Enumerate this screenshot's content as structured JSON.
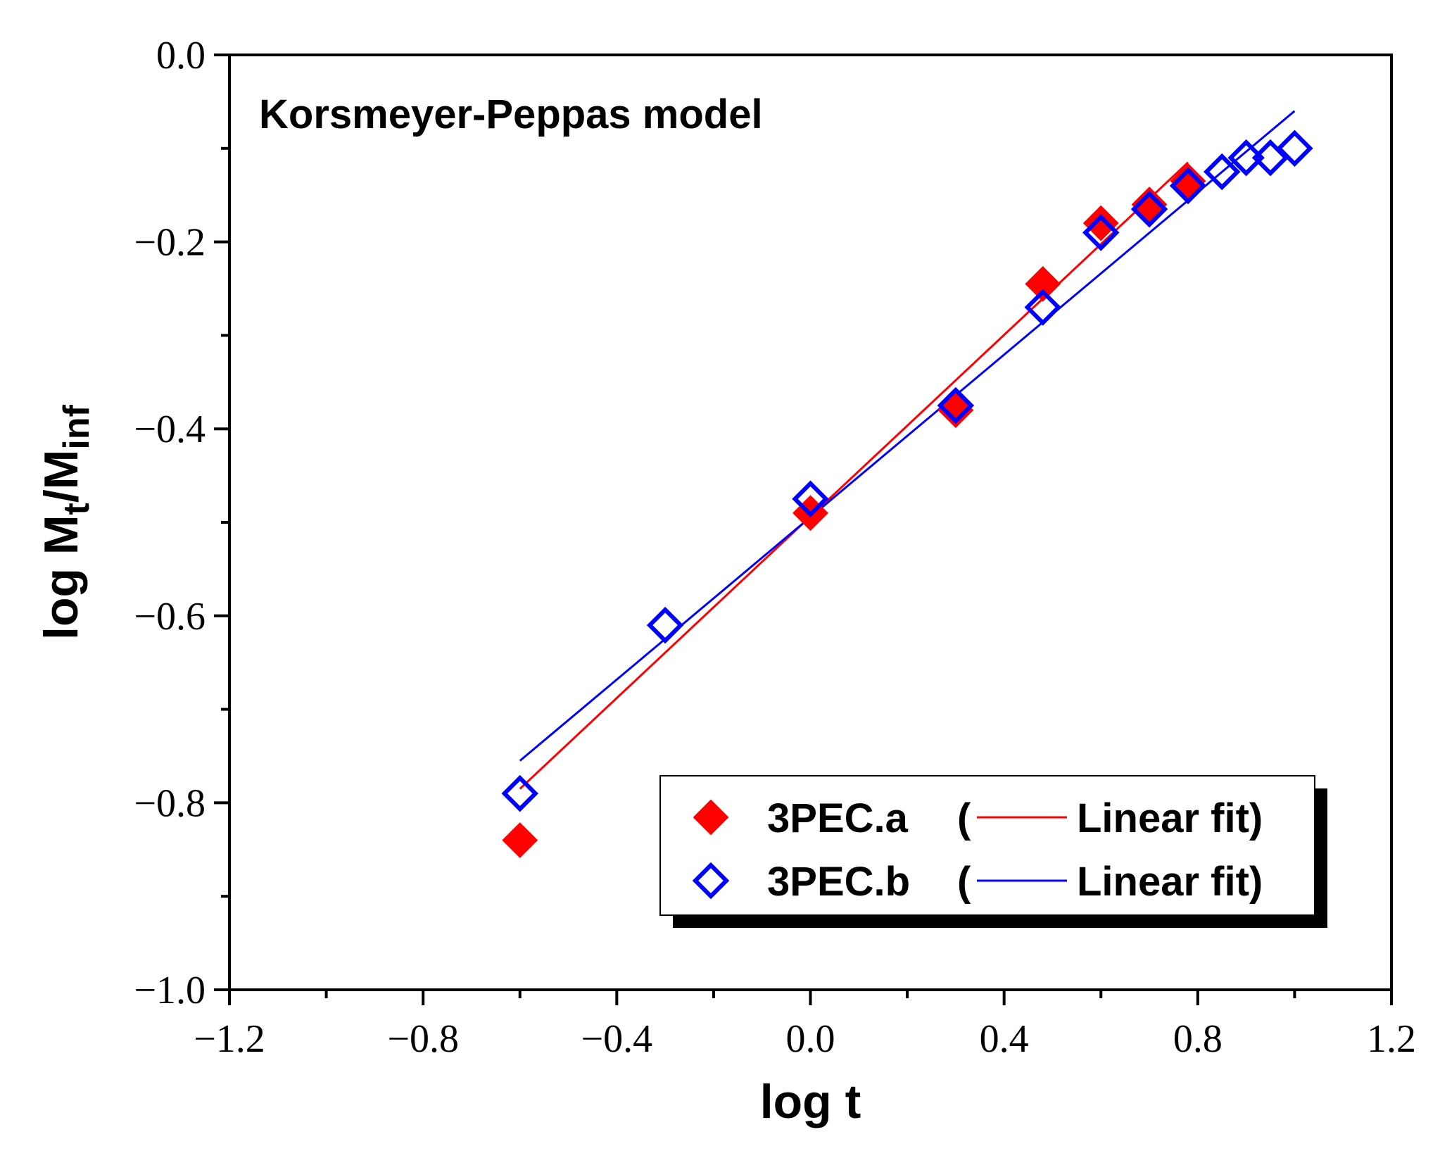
{
  "chart_data": {
    "type": "scatter",
    "title": "",
    "annotation": "Korsmeyer-Peppas model",
    "xlabel": "log t",
    "ylabel": {
      "prefix": "log M",
      "sub1": "t",
      "mid": "/M",
      "sub2": "inf"
    },
    "xlim": [
      -1.2,
      1.2
    ],
    "ylim": [
      -1.0,
      0.0
    ],
    "x_ticks": [
      -1.2,
      -0.8,
      -0.4,
      0.0,
      0.4,
      0.8,
      1.2
    ],
    "x_tick_labels": [
      "−1.2",
      "−0.8",
      "−0.4",
      "0.0",
      "0.4",
      "0.8",
      "1.2"
    ],
    "x_minor_ticks": [
      -1.0,
      -0.6,
      -0.2,
      0.2,
      0.6,
      1.0
    ],
    "y_ticks": [
      0.0,
      -0.2,
      -0.4,
      -0.6,
      -0.8,
      -1.0
    ],
    "y_tick_labels": [
      "0.0",
      "−0.2",
      "−0.4",
      "−0.6",
      "−0.8",
      "−1.0"
    ],
    "y_minor_ticks": [
      -0.1,
      -0.3,
      -0.5,
      -0.7,
      -0.9
    ],
    "grid": false,
    "legend_position": "bottom-right",
    "series": [
      {
        "name": "3PEC.a",
        "marker": "filled-diamond",
        "color": "#ff0000",
        "x": [
          -0.6,
          0.0,
          0.3,
          0.48,
          0.6,
          0.7,
          0.78
        ],
        "y": [
          -0.84,
          -0.49,
          -0.38,
          -0.245,
          -0.18,
          -0.16,
          -0.135
        ],
        "fit_label": "Linear fit",
        "fit": {
          "x": [
            -0.6,
            0.78
          ],
          "y": [
            -0.785,
            -0.115
          ]
        }
      },
      {
        "name": "3PEC.b",
        "marker": "open-diamond",
        "color": "#0000ff",
        "x": [
          -0.6,
          -0.3,
          0.0,
          0.3,
          0.48,
          0.6,
          0.7,
          0.78,
          0.85,
          0.9,
          0.95,
          1.0
        ],
        "y": [
          -0.79,
          -0.61,
          -0.475,
          -0.375,
          -0.27,
          -0.19,
          -0.165,
          -0.14,
          -0.125,
          -0.11,
          -0.11,
          -0.1
        ],
        "fit_label": "Linear fit",
        "fit": {
          "x": [
            -0.6,
            1.0
          ],
          "y": [
            -0.755,
            -0.06
          ]
        }
      }
    ]
  }
}
